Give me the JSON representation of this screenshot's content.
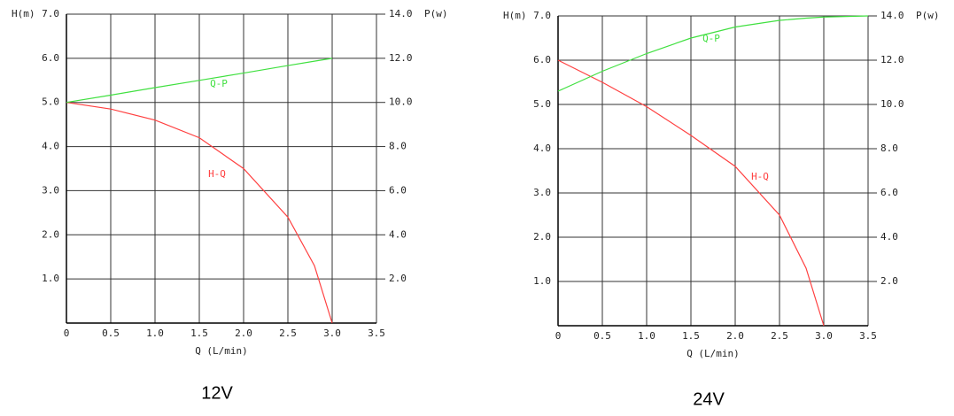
{
  "chart_data": [
    {
      "type": "line",
      "title": "12V",
      "xlabel": "Q (L/min)",
      "ylabel": "H(m)",
      "y2label": "P(w)",
      "x": [
        0,
        0.5,
        1.0,
        1.5,
        2.0,
        2.5,
        2.8,
        3.0
      ],
      "series": [
        {
          "name": "H-Q",
          "color": "#ff4040",
          "values": [
            5.0,
            4.85,
            4.6,
            4.2,
            3.5,
            2.4,
            1.3,
            0
          ]
        },
        {
          "name": "Q-P",
          "color": "#40e040",
          "axis": "y2",
          "values": [
            10,
            10.33,
            10.67,
            11,
            11.33,
            11.67,
            11.87,
            12
          ]
        }
      ],
      "xlim": [
        0,
        3.5
      ],
      "xticks": [
        0,
        0.5,
        {
          "value": 1,
          "label": "1.0"
        },
        1.5,
        {
          "value": 2,
          "label": "2.0"
        },
        2.5,
        {
          "value": 3,
          "label": "3.0"
        },
        3.5
      ],
      "ylim": [
        0,
        7
      ],
      "yticks": [
        {
          "value": 1,
          "label": "1.0"
        },
        {
          "value": 2,
          "label": "2.0"
        },
        {
          "value": 3,
          "label": "3.0"
        },
        {
          "value": 4,
          "label": "4.0"
        },
        {
          "value": 5,
          "label": "5.0"
        },
        {
          "value": 6,
          "label": "6.0"
        },
        {
          "value": 7,
          "label": "7.0"
        }
      ],
      "y2lim": [
        0,
        14
      ],
      "y2ticks": [
        {
          "value": 2,
          "label": "2.0"
        },
        {
          "value": 4,
          "label": "4.0"
        },
        {
          "value": 6,
          "label": "6.0"
        },
        {
          "value": 8,
          "label": "8.0"
        },
        {
          "value": 10,
          "label": "10.0"
        },
        {
          "value": 12,
          "label": "12.0"
        },
        {
          "value": 14,
          "label": "14.0"
        }
      ],
      "grid": true
    },
    {
      "type": "line",
      "title": "24V",
      "xlabel": "Q (L/min)",
      "ylabel": "H(m)",
      "y2label": "P(w)",
      "x": [
        0,
        0.5,
        1.0,
        1.5,
        2.0,
        2.5,
        2.8,
        3.0,
        3.5
      ],
      "series": [
        {
          "name": "H-Q",
          "color": "#ff4040",
          "values": [
            6.0,
            5.5,
            4.95,
            4.3,
            3.6,
            2.5,
            1.3,
            0,
            null
          ]
        },
        {
          "name": "Q-P",
          "color": "#40e040",
          "axis": "y2",
          "values": [
            10.6,
            11.5,
            12.3,
            13.0,
            13.5,
            13.8,
            13.9,
            13.95,
            14.0
          ]
        }
      ],
      "xlim": [
        0,
        3.5
      ],
      "xticks": [
        0,
        0.5,
        {
          "value": 1,
          "label": "1.0"
        },
        1.5,
        {
          "value": 2,
          "label": "2.0"
        },
        2.5,
        {
          "value": 3,
          "label": "3.0"
        },
        3.5
      ],
      "ylim": [
        0,
        7
      ],
      "yticks": [
        {
          "value": 1,
          "label": "1.0"
        },
        {
          "value": 2,
          "label": "2.0"
        },
        {
          "value": 3,
          "label": "3.0"
        },
        {
          "value": 4,
          "label": "4.0"
        },
        {
          "value": 5,
          "label": "5.0"
        },
        {
          "value": 6,
          "label": "6.0"
        },
        {
          "value": 7,
          "label": "7.0"
        }
      ],
      "y2lim": [
        0,
        14
      ],
      "y2ticks": [
        {
          "value": 2,
          "label": "2.0"
        },
        {
          "value": 4,
          "label": "4.0"
        },
        {
          "value": 6,
          "label": "6.0"
        },
        {
          "value": 8,
          "label": "8.0"
        },
        {
          "value": 10,
          "label": "10.0"
        },
        {
          "value": 12,
          "label": "12.0"
        },
        {
          "value": 14,
          "label": "14.0"
        }
      ],
      "grid": true
    }
  ]
}
